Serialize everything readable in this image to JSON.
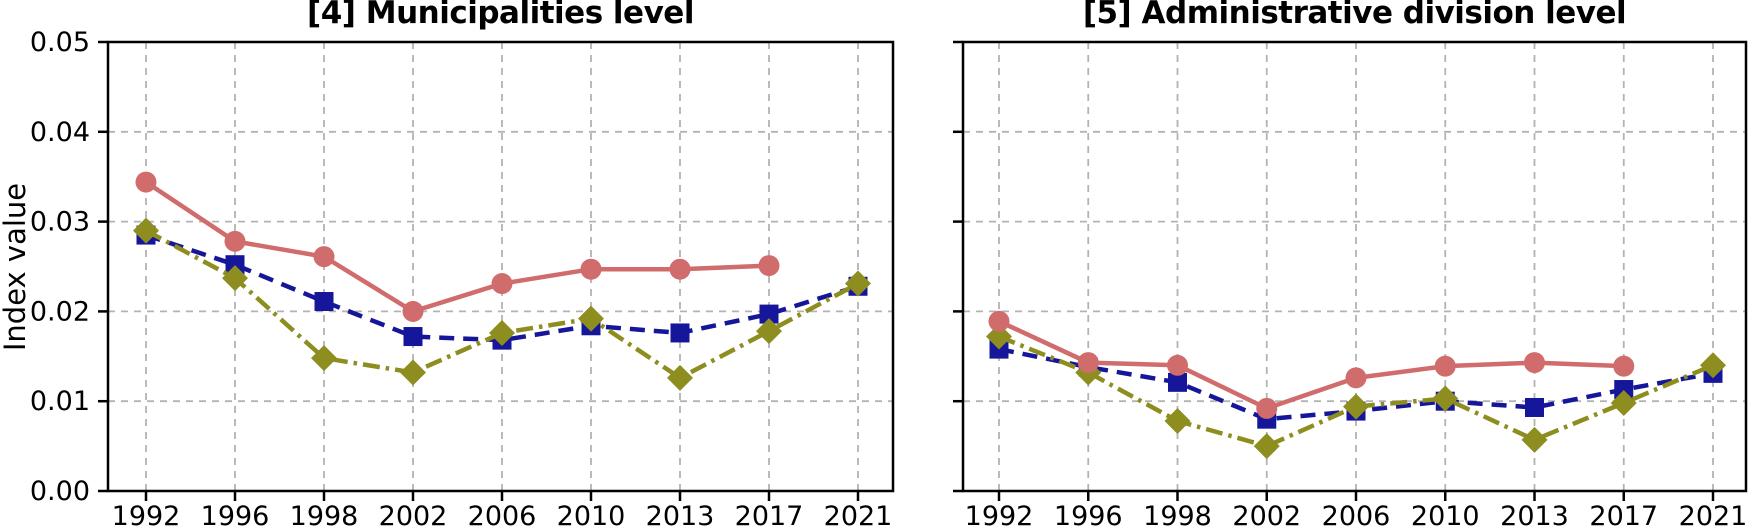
{
  "figure": {
    "background": "#ffffff",
    "spine_color": "#000000",
    "grid_color": "#b3b3b3",
    "tick_label_color": "#000000",
    "grid": "dashed"
  },
  "chart_data": [
    {
      "type": "line",
      "title": "[4] Municipalities level",
      "ylabel": "Index value",
      "xlabel": "",
      "categories": [
        "1992",
        "1996",
        "1998",
        "2002",
        "2006",
        "2010",
        "2013",
        "2017",
        "2021"
      ],
      "ylim": [
        0,
        0.05
      ],
      "yticks": [
        "0.00",
        "0.01",
        "0.02",
        "0.03",
        "0.04",
        "0.05"
      ],
      "grid": true,
      "legend": "none",
      "series": [
        {
          "name": "navy-dashed-squares",
          "color": "#16169a",
          "line_style": "dashed",
          "marker": "square",
          "values": [
            0.0285,
            0.0252,
            0.0211,
            0.0172,
            0.0168,
            0.0184,
            0.0176,
            0.0197,
            0.0228
          ]
        },
        {
          "name": "olive-dashdot-diamonds",
          "color": "#8e8e20",
          "line_style": "dashdot",
          "marker": "diamond",
          "values": [
            0.029,
            0.0237,
            0.0148,
            0.0132,
            0.0176,
            0.0192,
            0.0126,
            0.0178,
            0.0231
          ]
        },
        {
          "name": "red-solid-circles",
          "color": "#d06c6c",
          "line_style": "solid",
          "marker": "circle",
          "values": [
            0.0344,
            0.0278,
            0.0261,
            0.02,
            0.0231,
            0.0247,
            0.0247,
            0.0251,
            null
          ]
        }
      ]
    },
    {
      "type": "line",
      "title": "[5] Administrative division level",
      "ylabel": "Index value",
      "xlabel": "",
      "categories": [
        "1992",
        "1996",
        "1998",
        "2002",
        "2006",
        "2010",
        "2013",
        "2017",
        "2021"
      ],
      "ylim": [
        0,
        0.05
      ],
      "yticks": [
        "0.00",
        "0.01",
        "0.02",
        "0.03",
        "0.04",
        "0.05"
      ],
      "grid": true,
      "legend": "none",
      "series": [
        {
          "name": "navy-dashed-squares",
          "color": "#16169a",
          "line_style": "dashed",
          "marker": "square",
          "values": [
            0.0158,
            0.0138,
            0.0121,
            0.008,
            0.0089,
            0.01,
            0.0093,
            0.0113,
            0.0131
          ]
        },
        {
          "name": "olive-dashdot-diamonds",
          "color": "#8e8e20",
          "line_style": "dashdot",
          "marker": "diamond",
          "values": [
            0.0172,
            0.0132,
            0.0078,
            0.005,
            0.0094,
            0.0103,
            0.0057,
            0.0098,
            0.014
          ]
        },
        {
          "name": "red-solid-circles",
          "color": "#d06c6c",
          "line_style": "solid",
          "marker": "circle",
          "values": [
            0.0189,
            0.0143,
            0.014,
            0.0092,
            0.0126,
            0.0139,
            0.0143,
            0.0139,
            null
          ]
        }
      ]
    }
  ]
}
